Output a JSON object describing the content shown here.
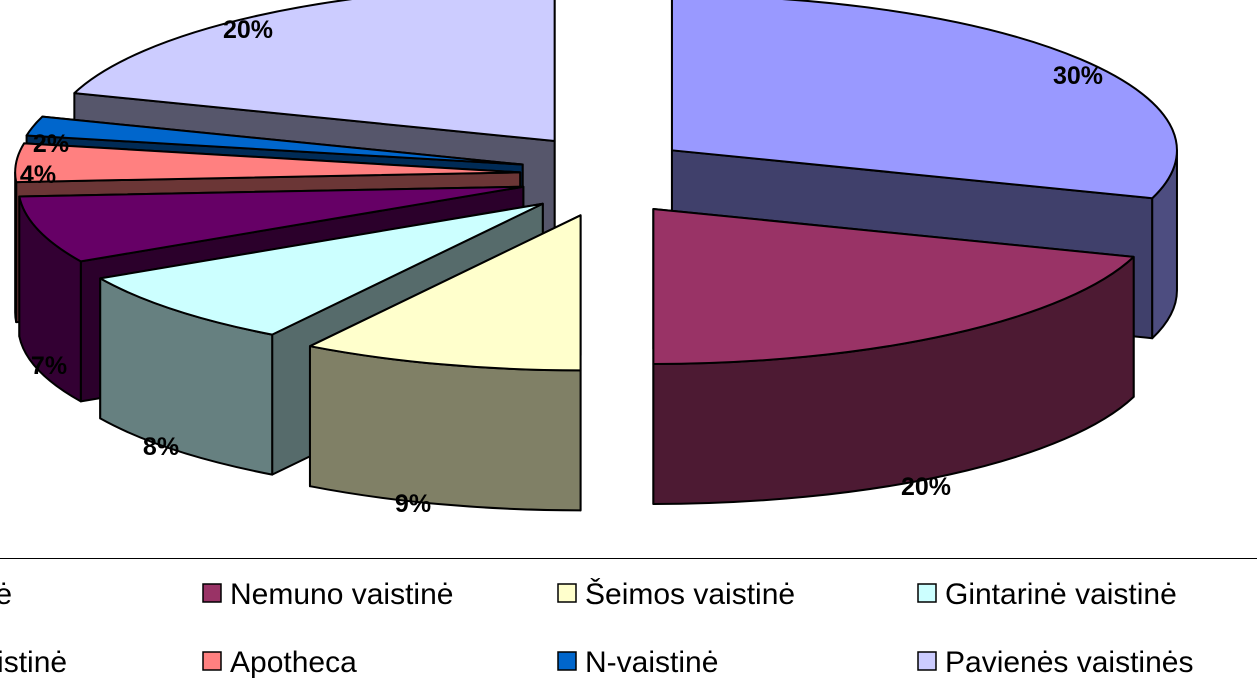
{
  "chart_data": {
    "type": "pie",
    "three_d": true,
    "exploded": true,
    "legend_position": "bottom",
    "slices": [
      {
        "label": "Eurovaistinė",
        "value": 30,
        "value_label": "30%",
        "color": "#9999ff"
      },
      {
        "label": "Nemuno vaistinė",
        "value": 20,
        "value_label": "20%",
        "color": "#993366"
      },
      {
        "label": "Šeimos vaistinė",
        "value": 9,
        "value_label": "9%",
        "color": "#ffffcc"
      },
      {
        "label": "Gintarinė vaistinė",
        "value": 8,
        "value_label": "8%",
        "color": "#ccffff"
      },
      {
        "label": "Camelia vaistinė",
        "value": 7,
        "value_label": "7%",
        "color": "#660066"
      },
      {
        "label": "Apotheca",
        "value": 4,
        "value_label": "4%",
        "color": "#ff8080"
      },
      {
        "label": "N-vaistinė",
        "value": 2,
        "value_label": "2%",
        "color": "#0066cc"
      },
      {
        "label": "Pavienės vaistinės",
        "value": 20,
        "value_label": "20%",
        "color": "#ccccff"
      }
    ]
  }
}
